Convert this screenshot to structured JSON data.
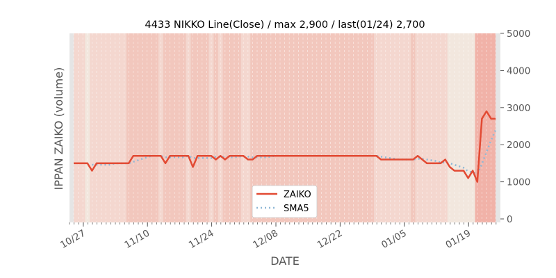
{
  "chart_data": {
    "type": "line",
    "title": "4433 NIKKO Line(Close) / max 2,900 / last(01/24) 2,700",
    "xlabel": "DATE",
    "ylabel": "IPPAN ZAIKO (volume)",
    "ylim": [
      0,
      5000
    ],
    "yticks": [
      "0",
      "1000",
      "2000",
      "3000",
      "4000",
      "5000"
    ],
    "start_date": "10/24",
    "xticks": [
      {
        "label": "10/27",
        "day": 3
      },
      {
        "label": "11/10",
        "day": 17
      },
      {
        "label": "11/24",
        "day": 31
      },
      {
        "label": "12/08",
        "day": 45
      },
      {
        "label": "12/22",
        "day": 59
      },
      {
        "label": "01/05",
        "day": 73
      },
      {
        "label": "01/19",
        "day": 87
      }
    ],
    "legend": {
      "placement": "bottom-center",
      "entries": [
        "ZAIKO",
        "SMA5"
      ]
    },
    "series": [
      {
        "name": "ZAIKO",
        "color": "#e24a33",
        "style": "solid",
        "values": [
          1500,
          1500,
          1500,
          1500,
          1300,
          1500,
          1500,
          1500,
          1500,
          1500,
          1500,
          1500,
          1500,
          1700,
          1700,
          1700,
          1700,
          1700,
          1700,
          1700,
          1500,
          1700,
          1700,
          1700,
          1700,
          1700,
          1400,
          1700,
          1700,
          1700,
          1700,
          1600,
          1700,
          1600,
          1700,
          1700,
          1700,
          1700,
          1600,
          1600,
          1700,
          1700,
          1700,
          1700,
          1700,
          1700,
          1700,
          1700,
          1700,
          1700,
          1700,
          1700,
          1700,
          1700,
          1700,
          1700,
          1700,
          1700,
          1700,
          1700,
          1700,
          1700,
          1700,
          1700,
          1700,
          1700,
          1700,
          1600,
          1600,
          1600,
          1600,
          1600,
          1600,
          1600,
          1600,
          1700,
          1600,
          1500,
          1500,
          1500,
          1500,
          1600,
          1400,
          1300,
          1300,
          1300,
          1100,
          1300,
          1000,
          2700,
          2900,
          2700,
          2700
        ]
      },
      {
        "name": "SMA5",
        "color": "#8eb8d6",
        "style": "dotted",
        "window": 5
      }
    ],
    "background_bands": [
      {
        "from": 0,
        "to": 3,
        "level": 1
      },
      {
        "from": 3,
        "to": 4,
        "level": 0
      },
      {
        "from": 4,
        "to": 12,
        "level": 1
      },
      {
        "from": 12,
        "to": 19,
        "level": 2
      },
      {
        "from": 19,
        "to": 20,
        "level": 1
      },
      {
        "from": 20,
        "to": 25,
        "level": 2
      },
      {
        "from": 25,
        "to": 26,
        "level": 1
      },
      {
        "from": 26,
        "to": 30,
        "level": 2
      },
      {
        "from": 30,
        "to": 31,
        "level": 1
      },
      {
        "from": 31,
        "to": 32,
        "level": 2
      },
      {
        "from": 32,
        "to": 33,
        "level": 1
      },
      {
        "from": 33,
        "to": 37,
        "level": 2
      },
      {
        "from": 37,
        "to": 39,
        "level": 1
      },
      {
        "from": 39,
        "to": 66,
        "level": 2
      },
      {
        "from": 66,
        "to": 74,
        "level": 1
      },
      {
        "from": 74,
        "to": 75,
        "level": 2
      },
      {
        "from": 75,
        "to": 82,
        "level": 1
      },
      {
        "from": 82,
        "to": 88,
        "level": 0
      },
      {
        "from": 88,
        "to": 92,
        "level": 3
      }
    ],
    "band_colors": [
      "#f2e7de",
      "#f4d7cf",
      "#f2c7bd",
      "#f1b2a8"
    ]
  }
}
